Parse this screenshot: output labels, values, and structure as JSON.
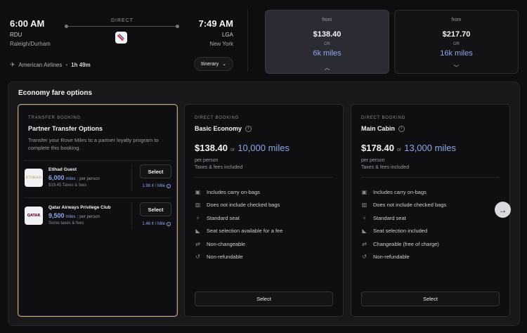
{
  "flight": {
    "departure": {
      "time": "6:00 AM",
      "code": "RDU",
      "city": "Raleigh/Durham"
    },
    "arrival": {
      "time": "7:49 AM",
      "code": "LGA",
      "city": "New York"
    },
    "route_type": "DIRECT",
    "airline": "American Airlines",
    "separator": "•",
    "duration": "1h 49m",
    "itinerary_label": "Itinerary"
  },
  "price_summary": [
    {
      "from": "from",
      "amount": "$138.40",
      "or": "OR",
      "miles": "6k miles",
      "chevron": "up-chevron-icon"
    },
    {
      "from": "from",
      "amount": "$217.70",
      "or": "OR",
      "miles": "16k miles",
      "chevron": "down-chevron-icon"
    }
  ],
  "fare_options": {
    "title": "Economy fare options",
    "partner": {
      "eyebrow": "TRANSFER BOOKING",
      "title": "Partner Transfer Options",
      "description": "Transfer your Rove Miles to a partner loyalty program to complete this booking.",
      "programs": [
        {
          "name": "Etihad Guest",
          "logo_text": "ETIHAD",
          "miles": "6,000",
          "miles_unit": "miles",
          "sep": "|",
          "per_person": "per person",
          "tax": "$19.45 Taxes & fees",
          "select": "Select",
          "rate": "1.98 ¢ / Mile"
        },
        {
          "name": "Qatar Airways Privilege Club",
          "logo_text": "QATAR",
          "miles": "9,500",
          "miles_unit": "miles",
          "sep": "|",
          "per_person": "per person",
          "tax": "Some taxes & fees",
          "select": "Select",
          "rate": "1.46 ¢ / Mile"
        }
      ]
    },
    "fares": [
      {
        "eyebrow": "DIRECT BOOKING",
        "name": "Basic Economy",
        "cash": "$138.40",
        "or": "or",
        "miles": "10,000 miles",
        "per_person": "per person",
        "taxes": "Taxes & fees included",
        "features": [
          {
            "icon": "bag-icon",
            "text": "Includes carry on-bags"
          },
          {
            "icon": "luggage-icon",
            "text": "Does not include checked bags"
          },
          {
            "icon": "seat-icon",
            "text": "Standard seat"
          },
          {
            "icon": "seat-select-icon",
            "text": "Seat selection available for a fee"
          },
          {
            "icon": "swap-icon",
            "text": "Non-changeable"
          },
          {
            "icon": "refund-icon",
            "text": "Non-refundable"
          }
        ],
        "select": "Select"
      },
      {
        "eyebrow": "DIRECT BOOKING",
        "name": "Main Cabin",
        "cash": "$178.40",
        "or": "or",
        "miles": "13,000 miles",
        "per_person": "per person",
        "taxes": "Taxes & fees included",
        "features": [
          {
            "icon": "bag-icon",
            "text": "Includes carry on-bags"
          },
          {
            "icon": "luggage-icon",
            "text": "Does not include checked bags"
          },
          {
            "icon": "seat-icon",
            "text": "Standard seat"
          },
          {
            "icon": "seat-select-icon",
            "text": "Seat selection included"
          },
          {
            "icon": "swap-icon",
            "text": "Changeable (free of charge)"
          },
          {
            "icon": "refund-icon",
            "text": "Non-refundable"
          }
        ],
        "select": "Select"
      }
    ],
    "next_icon": "arrow-right-icon"
  },
  "colors": {
    "accent_miles": "#8fa6e8",
    "partner_border": "#c2a86b",
    "selected_card": "#2b2b33"
  }
}
